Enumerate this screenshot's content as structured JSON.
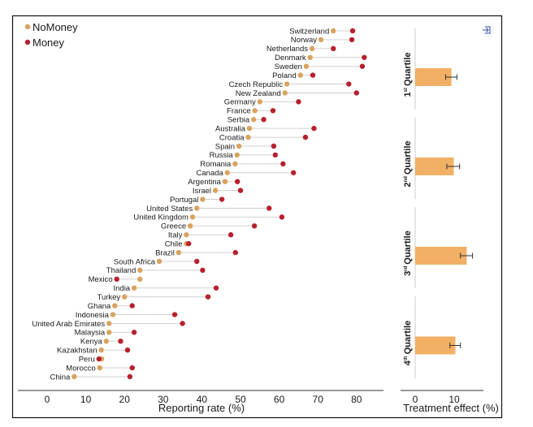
{
  "colors": {
    "nomoney": "#D9A35F",
    "money": "#B8202E",
    "bar": "#F2B066",
    "connector": "#d0d0d0"
  },
  "icons": {
    "export": "sign-in-icon"
  },
  "chart_data": [
    {
      "type": "scatter",
      "subtype": "dumbbell",
      "legend": [
        "NoMoney",
        "Money"
      ],
      "legend_position": "top-left",
      "xlabel": "Reporting rate (%)",
      "xlim": [
        -5,
        85
      ],
      "xticks": [
        0,
        10,
        20,
        30,
        40,
        50,
        60,
        70,
        80
      ],
      "grid": false,
      "countries": [
        "Switzerland",
        "Norway",
        "Netherlands",
        "Denmark",
        "Sweden",
        "Poland",
        "Czech Republic",
        "New Zealand",
        "Germany",
        "France",
        "Serbia",
        "Australia",
        "Croatia",
        "Spain",
        "Russia",
        "Romania",
        "Canada",
        "Argentina",
        "Israel",
        "Portugal",
        "United States",
        "United Kingdom",
        "Greece",
        "Italy",
        "Chile",
        "Brazil",
        "South Africa",
        "Thailand",
        "Mexico",
        "India",
        "Turkey",
        "Ghana",
        "Indonesia",
        "United Arab Emirates",
        "Malaysia",
        "Kenya",
        "Kazakhstan",
        "Peru",
        "Morocco",
        "China"
      ],
      "series": [
        {
          "name": "NoMoney",
          "values": [
            74,
            70.8,
            68.5,
            68,
            67,
            65.5,
            62,
            61.5,
            55,
            53.7,
            53.4,
            52.3,
            52,
            49.6,
            49.1,
            48.6,
            46.6,
            46,
            43.5,
            40.2,
            38.7,
            37.6,
            37,
            36,
            36,
            34,
            29,
            24,
            24,
            22.5,
            20,
            17.5,
            17,
            16,
            16,
            15.3,
            14,
            14.1,
            13.6,
            7
          ]
        },
        {
          "name": "Money",
          "values": [
            79,
            78.8,
            74,
            82,
            81.5,
            68.7,
            78,
            80,
            65,
            58.4,
            56,
            69,
            66.8,
            58.6,
            59,
            61,
            63.7,
            49.2,
            50,
            45.2,
            57.4,
            60.7,
            53.6,
            47.5,
            36.6,
            48.7,
            38.7,
            40.2,
            18,
            43.7,
            41.6,
            22,
            33,
            35,
            22.5,
            19,
            20.8,
            13.4,
            22,
            21.4
          ]
        }
      ]
    },
    {
      "type": "bar",
      "orientation": "horizontal",
      "categories": [
        {
          "num": "1",
          "sup": "st",
          "word": "Quartile"
        },
        {
          "num": "2",
          "sup": "nd",
          "word": "Quartile"
        },
        {
          "num": "3",
          "sup": "rd",
          "word": "Quartile"
        },
        {
          "num": "4",
          "sup": "th",
          "word": "Quartile"
        }
      ],
      "values": [
        9.3,
        9.9,
        13.2,
        10.3
      ],
      "error_low": [
        7.8,
        8.1,
        11.6,
        8.9
      ],
      "error_high": [
        10.7,
        11.4,
        14.7,
        11.6
      ],
      "xlabel": "Treatment effect (%)",
      "xlim": [
        -4,
        17
      ],
      "xticks": [
        0,
        10
      ]
    }
  ]
}
